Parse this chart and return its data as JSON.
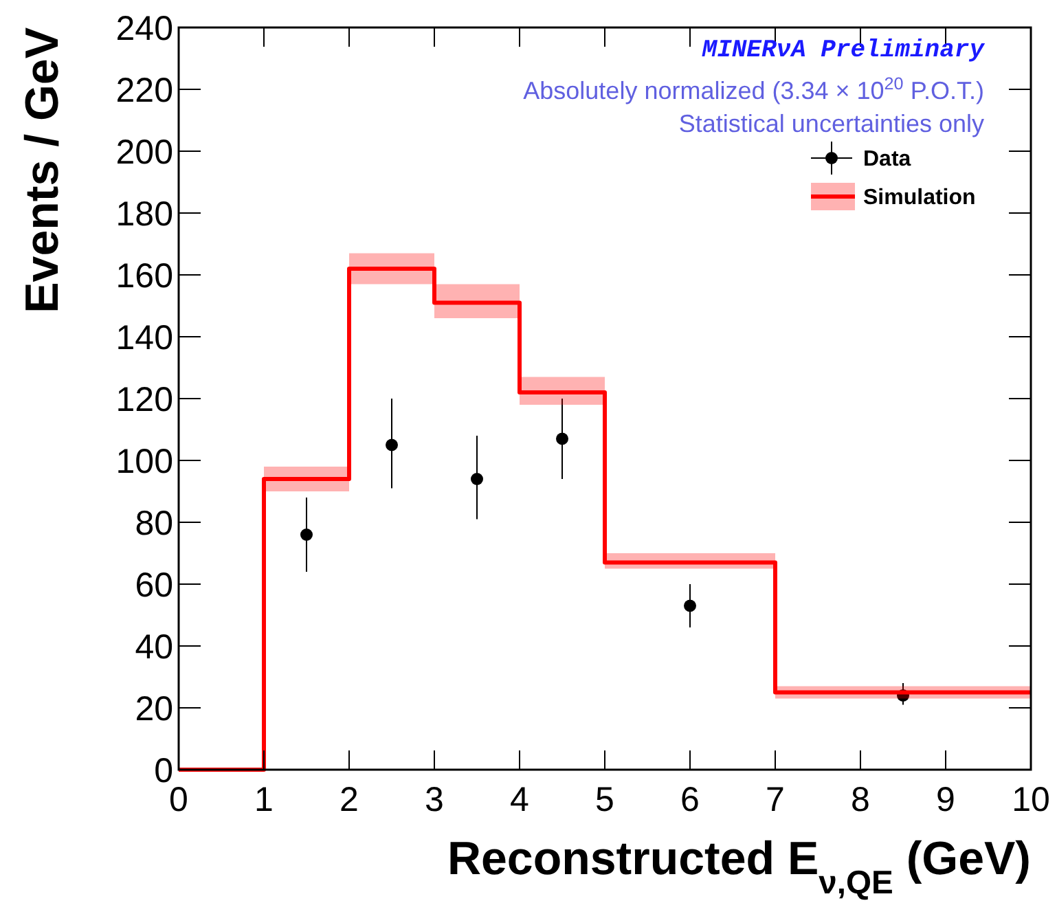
{
  "chart_data": {
    "type": "step",
    "xlabel": "Reconstructed E$_{ν,QE}$ (GeV)",
    "ylabel": "Events / GeV",
    "xlim": [
      0,
      10
    ],
    "xticks": [
      0,
      1,
      2,
      3,
      4,
      5,
      6,
      7,
      8,
      9,
      10
    ],
    "ylim": [
      0,
      240
    ],
    "yticks": [
      0,
      20,
      40,
      60,
      80,
      100,
      120,
      140,
      160,
      180,
      200,
      220,
      240
    ],
    "legend": "top right",
    "grid": false,
    "annotations": [
      "MINERνA Preliminary",
      "Absolutely normalized (3.34 × 10$^{20}$ P.O.T.)",
      "Statistical uncertainties only"
    ],
    "series": [
      {
        "name": "Data",
        "type": "scatter",
        "color": "#000000",
        "marker": "circle",
        "x": [
          1.5,
          2.5,
          3.5,
          4.5,
          6,
          8.5
        ],
        "values": [
          76,
          105,
          94,
          107,
          53,
          24
        ],
        "errors": [
          [
            64,
            88
          ],
          [
            91,
            120
          ],
          [
            81,
            108
          ],
          [
            94,
            120
          ],
          [
            46,
            60
          ],
          [
            21,
            28
          ]
        ]
      },
      {
        "name": "Simulation",
        "type": "step",
        "color": "#ff0000",
        "x": [
          0,
          1,
          2,
          3,
          4,
          5,
          7,
          10
        ],
        "values": [
          0,
          94,
          162,
          151,
          122,
          67,
          25,
          25
        ],
        "lower": [
          0,
          90,
          157,
          146,
          118,
          65,
          23,
          23
        ],
        "upper": [
          0,
          98,
          167,
          157,
          127,
          70,
          27,
          27
        ]
      }
    ]
  }
}
